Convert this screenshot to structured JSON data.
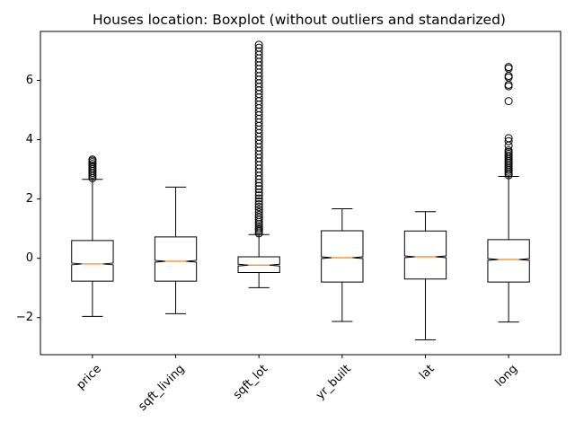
{
  "chart_data": {
    "type": "boxplot",
    "title": "Houses location: Boxplot (without outliers and standarized)",
    "xlabel": "",
    "ylabel": "",
    "ylim": [
      -3.25,
      7.65
    ],
    "yticks": [
      -2,
      0,
      2,
      4,
      6
    ],
    "ytick_labels": [
      "−2",
      "0",
      "2",
      "4",
      "6"
    ],
    "grid": false,
    "colors": {
      "box": "#000000",
      "median": "#ff7f0e",
      "flier": "#000000"
    },
    "categories": [
      "price",
      "sqft_living",
      "sqft_lot",
      "yr_built",
      "lat",
      "long"
    ],
    "boxes": [
      {
        "name": "price",
        "whisker_low": -1.96,
        "q1": -0.77,
        "median": -0.19,
        "q3": 0.6,
        "whisker_high": 2.66,
        "notch_halfwidth": 0.03,
        "fliers": [
          2.7,
          2.76,
          2.82,
          2.88,
          2.94,
          3.0,
          3.06,
          3.12,
          3.18,
          3.24,
          3.29,
          3.33
        ]
      },
      {
        "name": "sqft_living",
        "whisker_low": -1.87,
        "q1": -0.77,
        "median": -0.1,
        "q3": 0.72,
        "whisker_high": 2.4,
        "notch_halfwidth": 0.03,
        "fliers": []
      },
      {
        "name": "sqft_lot",
        "whisker_low": -0.99,
        "q1": -0.48,
        "median": -0.23,
        "q3": 0.05,
        "whisker_high": 0.8,
        "notch_halfwidth": 0.03,
        "fliers": [
          0.84,
          0.9,
          0.96,
          1.02,
          1.08,
          1.15,
          1.22,
          1.3,
          1.38,
          1.46,
          1.55,
          1.64,
          1.73,
          1.82,
          1.92,
          2.02,
          2.12,
          2.22,
          2.33,
          2.44,
          2.55,
          2.66,
          2.78,
          2.9,
          3.02,
          3.14,
          3.26,
          3.38,
          3.5,
          3.62,
          3.74,
          3.86,
          3.98,
          4.1,
          4.22,
          4.34,
          4.46,
          4.58,
          4.7,
          4.82,
          4.94,
          5.06,
          5.18,
          5.3,
          5.42,
          5.54,
          5.66,
          5.78,
          5.9,
          6.02,
          6.14,
          6.26,
          6.38,
          6.5,
          6.62,
          6.74,
          6.86,
          6.98,
          7.1,
          7.2
        ]
      },
      {
        "name": "yr_built",
        "whisker_low": -2.13,
        "q1": -0.8,
        "median": 0.02,
        "q3": 0.93,
        "whisker_high": 1.67,
        "notch_halfwidth": 0.03,
        "fliers": []
      },
      {
        "name": "lat",
        "whisker_low": -2.75,
        "q1": -0.7,
        "median": 0.05,
        "q3": 0.92,
        "whisker_high": 1.57,
        "notch_halfwidth": 0.03,
        "fliers": []
      },
      {
        "name": "long",
        "whisker_low": -2.15,
        "q1": -0.8,
        "median": -0.04,
        "q3": 0.63,
        "whisker_high": 2.76,
        "notch_halfwidth": 0.03,
        "fliers": [
          2.8,
          2.86,
          2.92,
          2.98,
          3.04,
          3.1,
          3.16,
          3.22,
          3.28,
          3.34,
          3.4,
          3.46,
          3.52,
          3.58,
          3.64,
          3.8,
          3.95,
          4.05,
          5.3,
          5.8,
          5.85,
          6.1,
          6.15,
          6.4,
          6.45
        ]
      }
    ]
  }
}
